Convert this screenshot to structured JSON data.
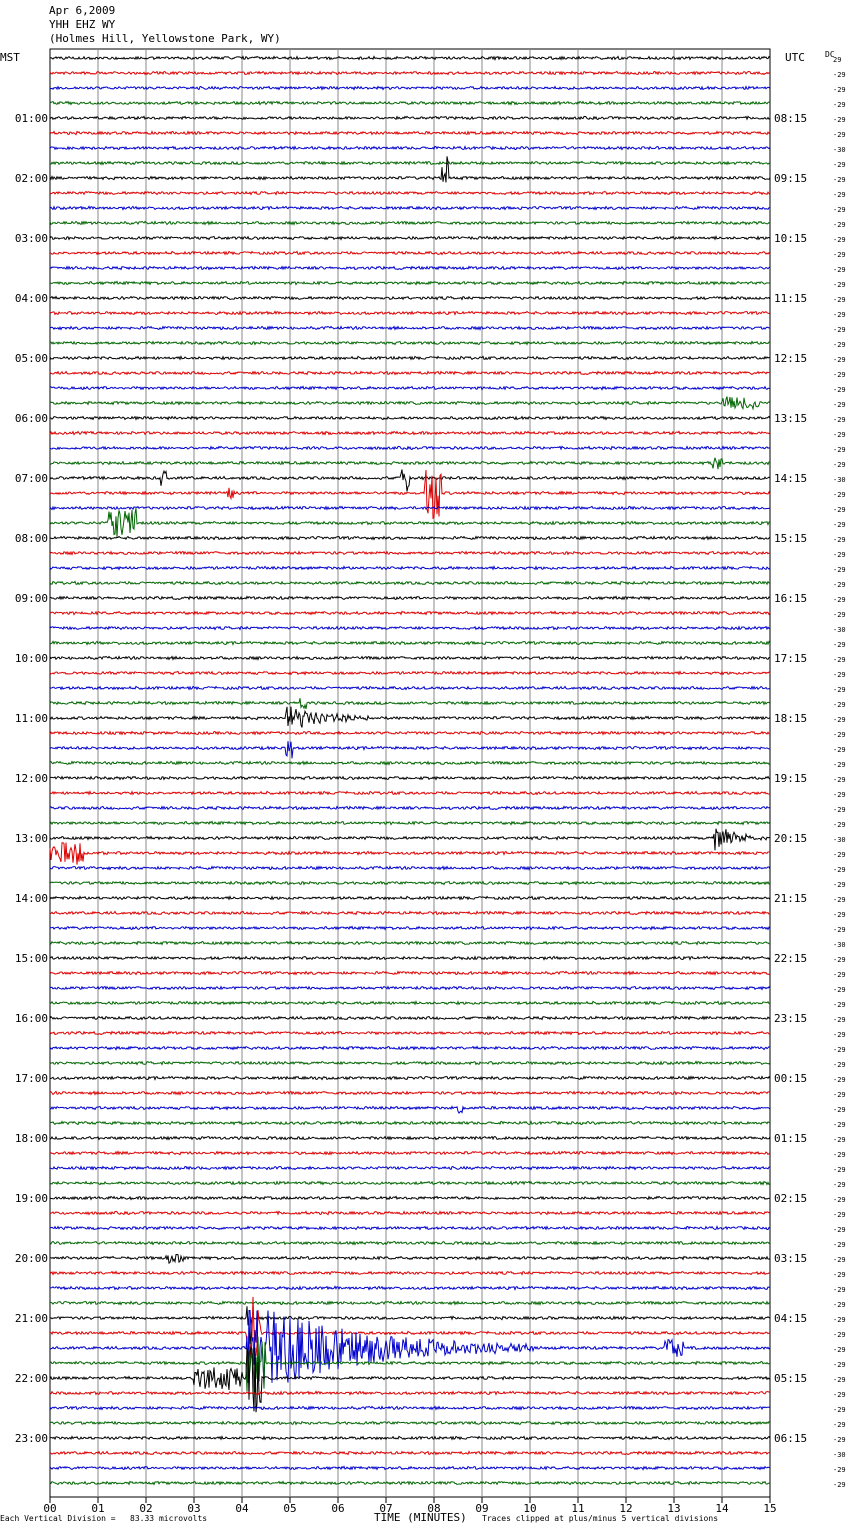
{
  "header": {
    "date": "Apr 6,2009",
    "station": "YHH EHZ WY",
    "location": "(Holmes Hill, Yellowstone Park, WY)"
  },
  "footer": {
    "scale_note": "Each Vertical Division =   83.33 microvolts",
    "clip_note": "Traces clipped at plus/minus 5 vertical divisions"
  },
  "chart_data": {
    "type": "line",
    "title": "",
    "left_label": "MST",
    "right_label": "UTC",
    "xlabel": "TIME (MINUTES)",
    "xlim": [
      0,
      15
    ],
    "x_ticks": [
      "00",
      "01",
      "02",
      "03",
      "04",
      "05",
      "06",
      "07",
      "08",
      "09",
      "10",
      "11",
      "12",
      "13",
      "14",
      "15"
    ],
    "mst_hour_labels": [
      "01:00",
      "02:00",
      "03:00",
      "04:00",
      "05:00",
      "06:00",
      "07:00",
      "08:00",
      "09:00",
      "10:00",
      "11:00",
      "12:00",
      "13:00",
      "14:00",
      "15:00",
      "16:00",
      "17:00",
      "18:00",
      "19:00",
      "20:00",
      "21:00",
      "22:00",
      "23:00"
    ],
    "utc_hour_labels": [
      "08:15",
      "09:15",
      "10:15",
      "11:15",
      "12:15",
      "13:15",
      "14:15",
      "15:15",
      "16:15",
      "17:15",
      "18:15",
      "19:15",
      "20:15",
      "21:15",
      "22:15",
      "23:15",
      "00:15",
      "01:15",
      "02:15",
      "03:15",
      "04:15",
      "05:15",
      "06:15"
    ],
    "dc_header": "DC",
    "dc_offsets": [
      "29",
      "-29",
      "-29",
      "-29",
      "-29",
      "-29",
      "-30",
      "-29",
      "-29",
      "-29",
      "-29",
      "-29",
      "-29",
      "-29",
      "-29",
      "-29",
      "-29",
      "-29",
      "-29",
      "-29",
      "-29",
      "-29",
      "-29",
      "-29",
      "-29",
      "-29",
      "-29",
      "-29",
      "-30",
      "-29",
      "-29",
      "-29",
      "-29",
      "-29",
      "-29",
      "-29",
      "-29",
      "-29",
      "-30",
      "-29",
      "-29",
      "-29",
      "-29",
      "-29",
      "-29",
      "-29",
      "-29",
      "-29",
      "-29",
      "-29",
      "-29",
      "-29",
      "-30",
      "-29",
      "-29",
      "-29",
      "-29",
      "-29",
      "-29",
      "-30",
      "-29",
      "-29",
      "-29",
      "-29",
      "-29",
      "-29",
      "-29",
      "-29",
      "-29",
      "-29",
      "-29",
      "-29",
      "-29",
      "-29",
      "-29",
      "-29",
      "-29",
      "-29",
      "-29",
      "-29",
      "-29",
      "-29",
      "-29",
      "-29",
      "-29",
      "-29",
      "-29",
      "-29",
      "-29",
      "-29",
      "-29",
      "-29",
      "-29",
      "-30",
      "-29",
      "-29"
    ],
    "trace_count": 96,
    "trace_minutes": 15,
    "trace_colors": [
      "#000000",
      "#dd0000",
      "#0000cc",
      "#006600"
    ],
    "events": [
      {
        "trace": 8,
        "minute": 8.15,
        "amp": 3.0,
        "dur": 0.15
      },
      {
        "trace": 23,
        "minute": 14.0,
        "amp": 0.8,
        "dur": 0.8
      },
      {
        "trace": 27,
        "minute": 13.8,
        "amp": 1.0,
        "dur": 0.2
      },
      {
        "trace": 28,
        "minute": 2.3,
        "amp": 1.0,
        "dur": 0.15
      },
      {
        "trace": 28,
        "minute": 7.3,
        "amp": 1.8,
        "dur": 0.2
      },
      {
        "trace": 29,
        "minute": 3.7,
        "amp": 0.8,
        "dur": 0.15
      },
      {
        "trace": 29,
        "minute": 7.8,
        "amp": 3.5,
        "dur": 0.35
      },
      {
        "trace": 31,
        "minute": 1.2,
        "amp": 2.0,
        "dur": 0.6
      },
      {
        "trace": 43,
        "minute": 5.2,
        "amp": 1.0,
        "dur": 0.15
      },
      {
        "trace": 44,
        "minute": 4.9,
        "amp": 2.0,
        "dur": 2.0
      },
      {
        "trace": 46,
        "minute": 4.9,
        "amp": 1.5,
        "dur": 0.15
      },
      {
        "trace": 52,
        "minute": 13.8,
        "amp": 2.0,
        "dur": 1.2
      },
      {
        "trace": 53,
        "minute": 0.0,
        "amp": 1.5,
        "dur": 0.7
      },
      {
        "trace": 70,
        "minute": 8.5,
        "amp": 1.0,
        "dur": 0.1
      },
      {
        "trace": 80,
        "minute": 2.4,
        "amp": 0.6,
        "dur": 0.4
      },
      {
        "trace": 84,
        "minute": 4.1,
        "amp": 5.0,
        "dur": 0.1
      },
      {
        "trace": 85,
        "minute": 4.1,
        "amp": 5.0,
        "dur": 0.3
      },
      {
        "trace": 86,
        "minute": 4.1,
        "amp": 7.0,
        "dur": 6.0
      },
      {
        "trace": 86,
        "minute": 12.8,
        "amp": 1.2,
        "dur": 0.4
      },
      {
        "trace": 87,
        "minute": 4.1,
        "amp": 5.0,
        "dur": 0.4
      },
      {
        "trace": 88,
        "minute": 3.0,
        "amp": 1.5,
        "dur": 1.0
      },
      {
        "trace": 88,
        "minute": 4.1,
        "amp": 5.0,
        "dur": 0.3
      }
    ]
  }
}
